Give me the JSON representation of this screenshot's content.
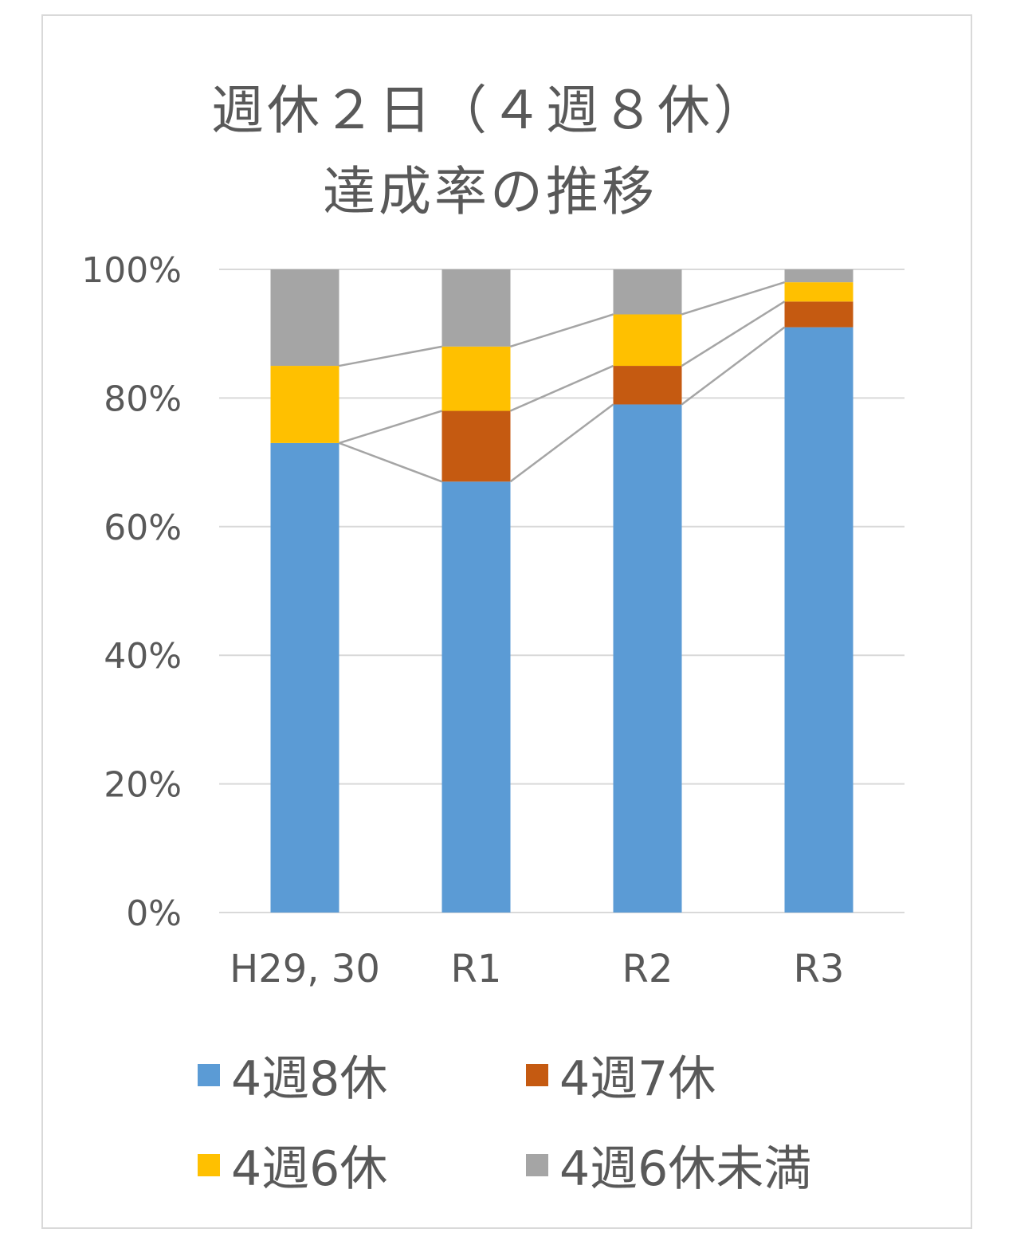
{
  "chart_data": {
    "type": "bar",
    "stacked": true,
    "title_lines": [
      "週休２日（４週８休）",
      "達成率の推移"
    ],
    "categories": [
      "H29, 30",
      "R1",
      "R2",
      "R3"
    ],
    "y_ticks": [
      "100%",
      "80%",
      "60%",
      "40%",
      "20%",
      "0%"
    ],
    "ylim": [
      0,
      100
    ],
    "grid": true,
    "legend_position": "bottom",
    "series": [
      {
        "name": "4週8休",
        "color": "#5b9bd5",
        "values": [
          73,
          67,
          79,
          91
        ]
      },
      {
        "name": "4週7休",
        "color": "#c55a11",
        "values": [
          0,
          11,
          6,
          4
        ]
      },
      {
        "name": "4週6休",
        "color": "#ffc000",
        "values": [
          12,
          10,
          8,
          3
        ]
      },
      {
        "name": "4週6休未満",
        "color": "#a5a5a5",
        "values": [
          15,
          12,
          7,
          2
        ]
      }
    ]
  }
}
